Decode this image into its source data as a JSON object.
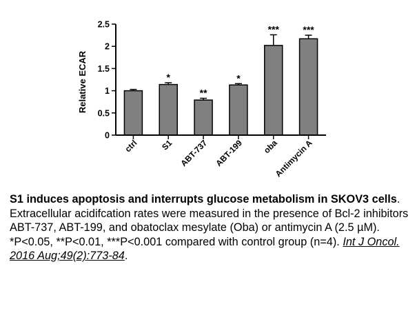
{
  "chart_data": {
    "type": "bar",
    "categories": [
      "ctrl",
      "S1",
      "ABT-737",
      "ABT-199",
      "oba",
      "Antimycin A"
    ],
    "values": [
      1.0,
      1.14,
      0.79,
      1.13,
      2.02,
      2.17
    ],
    "errors": [
      0.03,
      0.04,
      0.04,
      0.03,
      0.24,
      0.08
    ],
    "significance": [
      "",
      "*",
      "**",
      "*",
      "***",
      "***"
    ],
    "ylabel": "Relative ECAR",
    "xlabel": "",
    "ylim": [
      0,
      2.5
    ],
    "yticks": [
      "0",
      "0.5",
      "1",
      "1.5",
      "2",
      "2.5"
    ],
    "bar_color": "#808080",
    "grid": false
  },
  "caption": {
    "bold": "S1 induces apoptosis and interrupts glucose metabolism in SKOV3 cells",
    "body": ". Extracellular acidifcation rates were measured in the presence of Bcl-2 inhibitors ABT-737, ABT-199, and obatoclax mesylate (Oba) or antimycin A (2.5 µM). *P<0.05, **P<0.01, ***P<0.001 compared with control group (n=4). ",
    "citation": "Int J Oncol. 2016 Aug;49(2):773-84",
    "end": "."
  }
}
